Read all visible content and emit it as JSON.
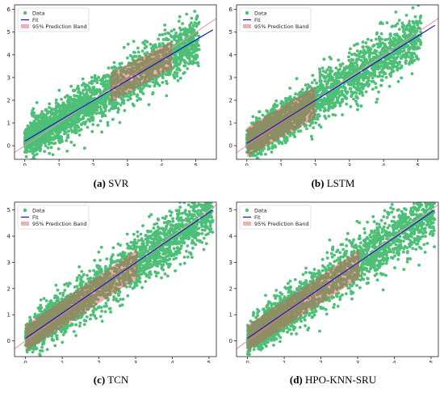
{
  "colors": {
    "data": "#4dbf76",
    "fit": "#1010c8",
    "band_fill": "#d9534f",
    "ideal_line": "#e89a9a",
    "axis": "#222222"
  },
  "legend": {
    "data": "Data",
    "fit": "Fit",
    "band": "95% Prediction Band"
  },
  "chart_data": [
    {
      "type": "scatter",
      "caption_letter": "(a)",
      "caption_name": "SVR",
      "xlim": [
        -0.3,
        5.6
      ],
      "ylim": [
        -0.6,
        6.2
      ],
      "xticks": [
        0,
        1,
        2,
        3,
        4,
        5
      ],
      "yticks": [
        0,
        1,
        2,
        3,
        4,
        5,
        6
      ],
      "fit": {
        "x": [
          0,
          5.5
        ],
        "y": [
          0.2,
          5.1
        ]
      },
      "band": {
        "x": [
          2.5,
          4.3
        ],
        "lower": [
          1.9,
          3.4
        ],
        "upper": [
          3.2,
          4.6
        ]
      },
      "scatter_spread": 0.55
    },
    {
      "type": "scatter",
      "caption_letter": "(b)",
      "caption_name": "LSTM",
      "xlim": [
        -0.3,
        5.6
      ],
      "ylim": [
        -0.6,
        6.2
      ],
      "xticks": [
        0,
        1,
        2,
        3,
        4,
        5
      ],
      "yticks": [
        0,
        1,
        2,
        3,
        4,
        5,
        6
      ],
      "fit": {
        "x": [
          0,
          5.5
        ],
        "y": [
          0.1,
          5.3
        ]
      },
      "band": {
        "x": [
          0,
          2.0
        ],
        "lower": [
          -0.5,
          1.2
        ],
        "upper": [
          0.8,
          2.6
        ]
      },
      "scatter_spread": 0.55
    },
    {
      "type": "scatter",
      "caption_letter": "(c)",
      "caption_name": "TCN",
      "xlim": [
        -0.3,
        5.2
      ],
      "ylim": [
        -0.6,
        5.3
      ],
      "xticks": [
        0,
        1,
        2,
        3,
        4,
        5
      ],
      "yticks": [
        0,
        1,
        2,
        3,
        4,
        5
      ],
      "fit": {
        "x": [
          0,
          5.1
        ],
        "y": [
          0.1,
          5.0
        ]
      },
      "band": {
        "x": [
          0,
          3.05
        ],
        "lower": [
          -0.4,
          2.4
        ],
        "upper": [
          0.6,
          3.5
        ]
      },
      "scatter_spread": 0.5
    },
    {
      "type": "scatter",
      "caption_letter": "(d)",
      "caption_name": "HPO-KNN-SRU",
      "xlim": [
        -0.3,
        5.2
      ],
      "ylim": [
        -0.6,
        5.3
      ],
      "xticks": [
        0,
        1,
        2,
        3,
        4,
        5
      ],
      "yticks": [
        0,
        1,
        2,
        3,
        4,
        5
      ],
      "fit": {
        "x": [
          0,
          5.1
        ],
        "y": [
          0.1,
          5.0
        ]
      },
      "band": {
        "x": [
          0,
          3.05
        ],
        "lower": [
          -0.4,
          2.4
        ],
        "upper": [
          0.6,
          3.5
        ]
      },
      "scatter_spread": 0.5
    }
  ]
}
